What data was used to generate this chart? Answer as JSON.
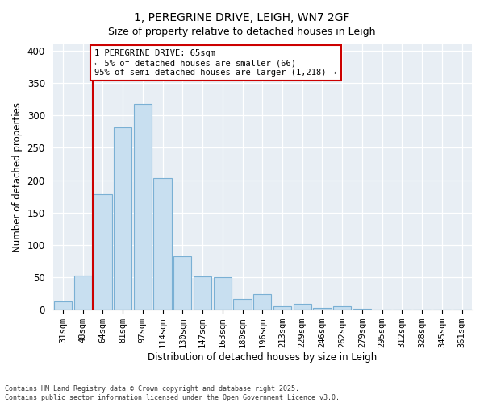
{
  "title": "1, PEREGRINE DRIVE, LEIGH, WN7 2GF",
  "subtitle": "Size of property relative to detached houses in Leigh",
  "xlabel": "Distribution of detached houses by size in Leigh",
  "ylabel": "Number of detached properties",
  "bar_labels": [
    "31sqm",
    "48sqm",
    "64sqm",
    "81sqm",
    "97sqm",
    "114sqm",
    "130sqm",
    "147sqm",
    "163sqm",
    "180sqm",
    "196sqm",
    "213sqm",
    "229sqm",
    "246sqm",
    "262sqm",
    "279sqm",
    "295sqm",
    "312sqm",
    "328sqm",
    "345sqm",
    "361sqm"
  ],
  "bar_values": [
    13,
    53,
    178,
    282,
    318,
    203,
    83,
    51,
    50,
    16,
    24,
    5,
    9,
    3,
    5,
    1,
    0,
    0,
    0,
    0,
    0
  ],
  "bar_color": "#c8dff0",
  "bar_edge_color": "#7ab0d4",
  "vline_color": "#cc0000",
  "annotation_text": "1 PEREGRINE DRIVE: 65sqm\n← 5% of detached houses are smaller (66)\n95% of semi-detached houses are larger (1,218) →",
  "annotation_box_color": "#ffffff",
  "annotation_box_edge": "#cc0000",
  "ylim": [
    0,
    410
  ],
  "yticks": [
    0,
    50,
    100,
    150,
    200,
    250,
    300,
    350,
    400
  ],
  "bg_color": "#e8eef4",
  "footer_line1": "Contains HM Land Registry data © Crown copyright and database right 2025.",
  "footer_line2": "Contains public sector information licensed under the Open Government Licence v3.0."
}
